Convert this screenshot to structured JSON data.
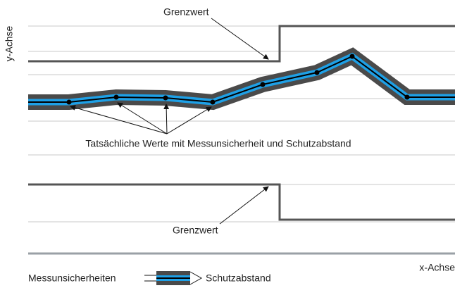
{
  "y_axis_label": "y-Achse",
  "x_axis_label": "x-Achse",
  "upper_limit_label": "Grenzwert",
  "lower_limit_label": "Grenzwert",
  "values_label": "Tatsächliche Werte mit Messunsicherheit und Schutzabstand",
  "legend": {
    "uncertainty": "Messunsicherheiten",
    "margin": "Schutzabstand"
  }
}
